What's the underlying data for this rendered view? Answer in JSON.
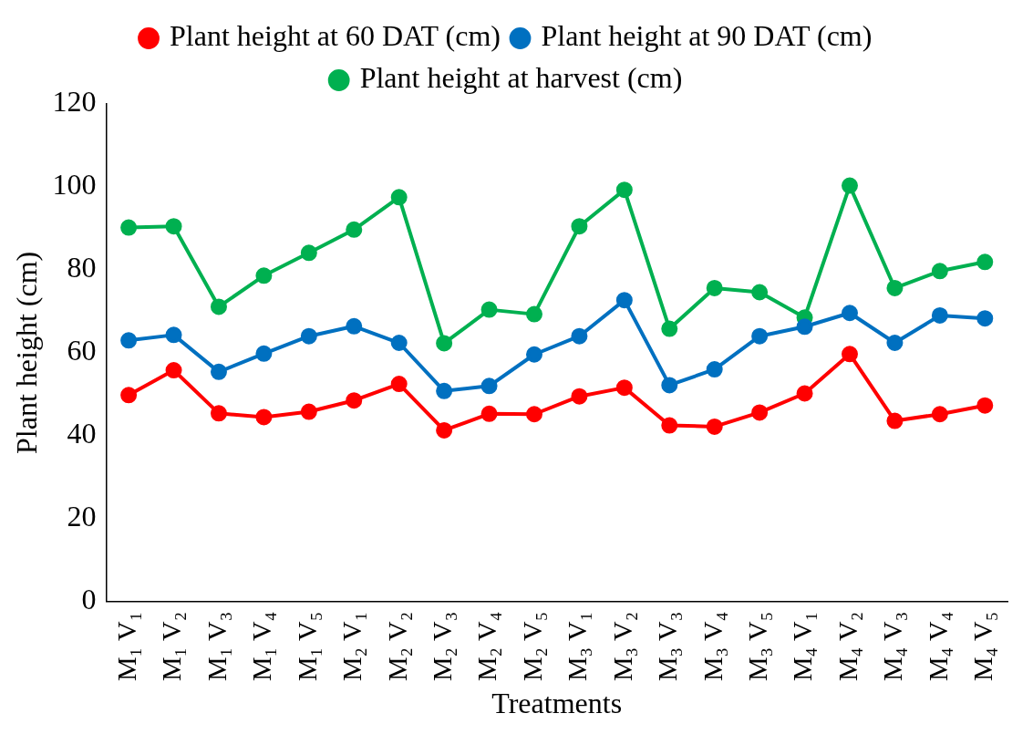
{
  "chart_data": {
    "type": "line",
    "xlabel": "Treatments",
    "ylabel": "Plant height (cm)",
    "categories": [
      "M₁ V₁",
      "M₁ V₂",
      "M₁ V₃",
      "M₁ V₄",
      "M₁ V₅",
      "M₂ V₁",
      "M₂ V₂",
      "M₂ V₃",
      "M₂ V₄",
      "M₂ V₅",
      "M₃ V₁",
      "M₃ V₂",
      "M₃ V₃",
      "M₃ V₄",
      "M₃ V₅",
      "M₄ V₁",
      "M₄ V₂",
      "M₄ V₃",
      "M₄ V₄",
      "M₄ V₅"
    ],
    "series": [
      {
        "name": "Plant height at 60 DAT (cm)",
        "color": "#ff0000",
        "values": [
          49.8,
          55.8,
          45.4,
          44.5,
          45.8,
          48.5,
          52.5,
          41.3,
          45.3,
          45.2,
          49.5,
          51.6,
          42.5,
          42.2,
          45.6,
          50.2,
          59.7,
          43.6,
          45.2,
          47.3
        ]
      },
      {
        "name": "Plant height at 90 DAT (cm)",
        "color": "#0070c0",
        "values": [
          63,
          64.3,
          55.4,
          59.8,
          64,
          66.4,
          62.4,
          50.8,
          52,
          59.6,
          64,
          72.7,
          52.2,
          56,
          64,
          66.3,
          69.6,
          62.4,
          69,
          68.3
        ]
      },
      {
        "name": "Plant height at harvest (cm)",
        "color": "#00b050",
        "values": [
          90.2,
          90.5,
          71.1,
          78.6,
          84.1,
          89.7,
          97.5,
          62.3,
          70.4,
          69.3,
          90.5,
          99.3,
          65.8,
          75.6,
          74.6,
          68.5,
          100.3,
          75.6,
          79.7,
          81.9
        ]
      }
    ],
    "ylim": [
      0,
      120
    ],
    "yticks": [
      0,
      20,
      40,
      60,
      80,
      100,
      120
    ],
    "grid": false,
    "legend": "top",
    "marker": "circle",
    "line_style": "solid"
  }
}
